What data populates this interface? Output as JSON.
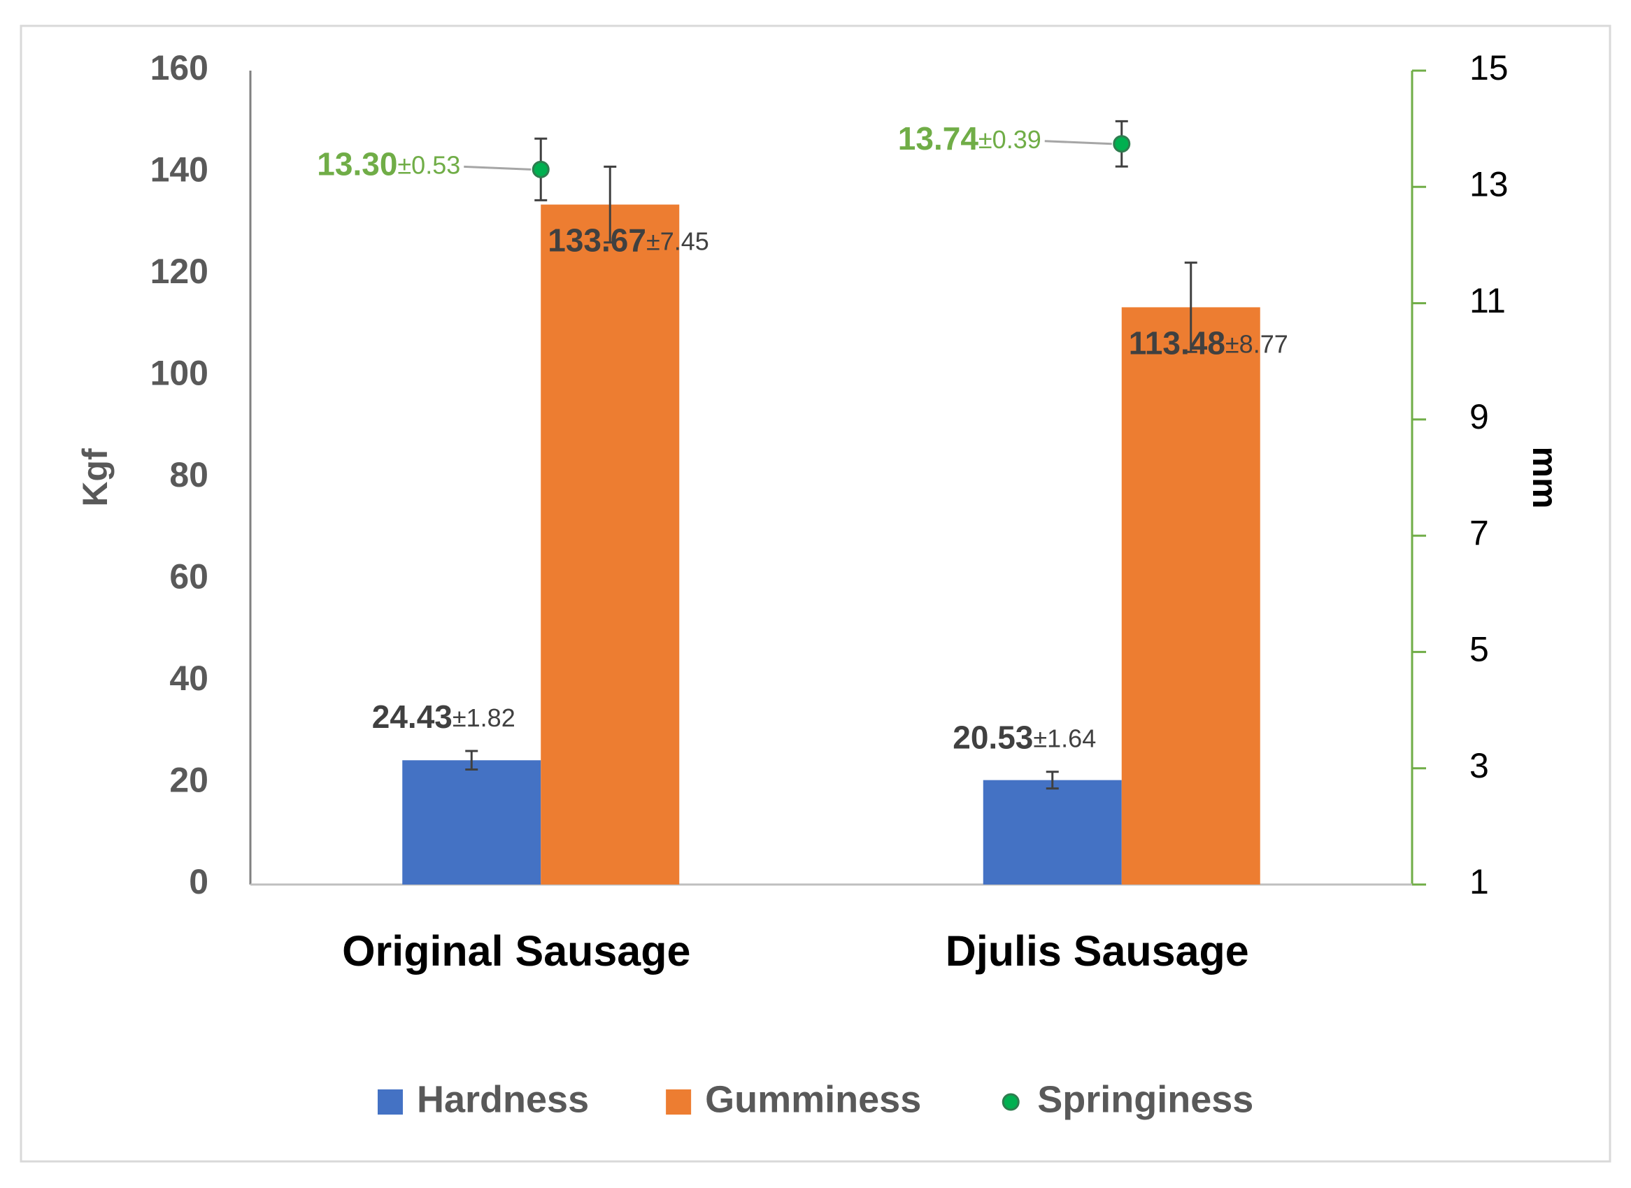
{
  "chart_data": {
    "type": "bar",
    "categories": [
      "Original Sausage",
      "Djulis Sausage"
    ],
    "y_label": "Kgf",
    "y2_label": "mm",
    "ylim": [
      0,
      160
    ],
    "yticks": [
      0,
      20,
      40,
      60,
      80,
      100,
      120,
      140,
      160
    ],
    "y2lim": [
      1,
      15
    ],
    "y2ticks": [
      1,
      3,
      5,
      7,
      9,
      11,
      13,
      15
    ],
    "legend": "bottom",
    "series": [
      {
        "name": "Hardness",
        "type": "bar",
        "color": "#4472c4",
        "values": [
          24.43,
          20.53
        ],
        "value_labels": [
          "24.43",
          "20.53"
        ],
        "errors": [
          1.82,
          1.64
        ],
        "error_labels": [
          "±1.82",
          "±1.64"
        ],
        "label_color": "#404040"
      },
      {
        "name": "Gumminess",
        "type": "bar",
        "color": "#ed7d31",
        "values": [
          133.67,
          113.48
        ],
        "value_labels": [
          "133.67",
          "113.48"
        ],
        "errors": [
          7.45,
          8.77
        ],
        "error_labels": [
          "±7.45",
          "±8.77"
        ],
        "label_color": "#404040"
      },
      {
        "name": "Springiness",
        "type": "scatter",
        "axis": "y2",
        "color": "#00b050",
        "values": [
          13.3,
          13.74
        ],
        "value_labels": [
          "13.30",
          "13.74"
        ],
        "errors": [
          0.53,
          0.39
        ],
        "error_labels": [
          "±0.53",
          "±0.39"
        ],
        "label_color": "#70ad47"
      }
    ]
  }
}
